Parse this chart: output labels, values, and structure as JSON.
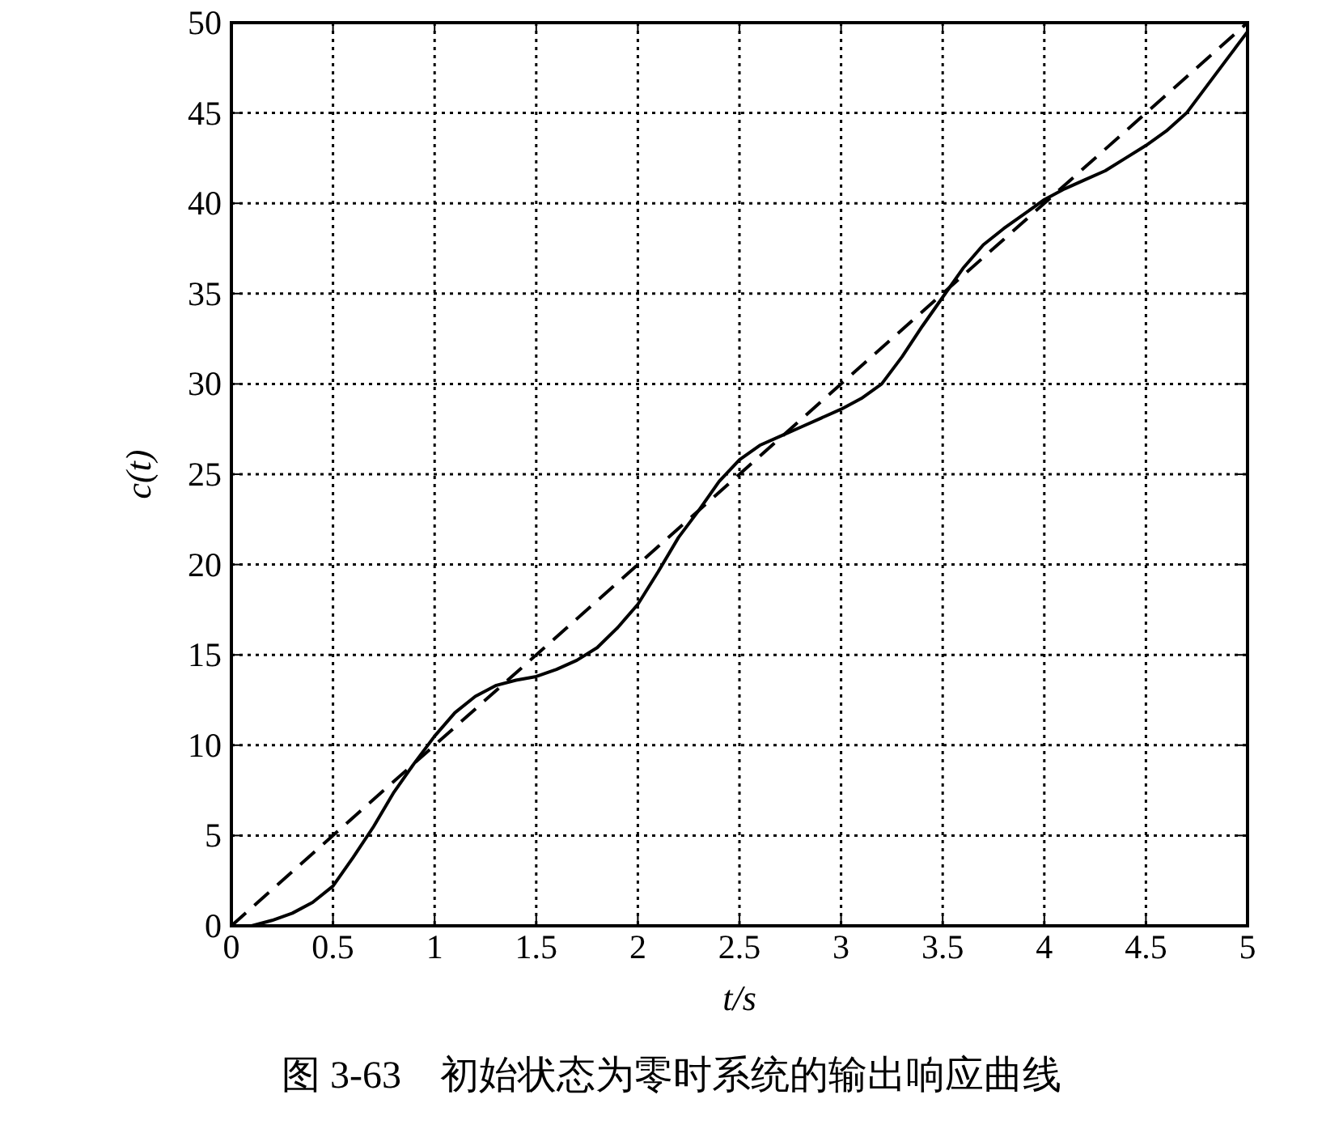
{
  "chart_data": {
    "type": "line",
    "xlabel": "t/s",
    "ylabel": "c(t)",
    "annotations": [
      "图 3-63　初始状态为零时系统的输出响应曲线"
    ],
    "xlim": [
      0,
      5
    ],
    "ylim": [
      0,
      50
    ],
    "xticks": [
      0,
      0.5,
      1,
      1.5,
      2,
      2.5,
      3,
      3.5,
      4,
      4.5,
      5
    ],
    "yticks": [
      0,
      5,
      10,
      15,
      20,
      25,
      30,
      35,
      40,
      45,
      50
    ],
    "grid": true,
    "marker": "none",
    "series": [
      {
        "color": "#000000",
        "line_style": "solid",
        "x": [
          0,
          0.1,
          0.2,
          0.3,
          0.4,
          0.5,
          0.6,
          0.7,
          0.8,
          0.9,
          1.0,
          1.1,
          1.2,
          1.3,
          1.4,
          1.5,
          1.6,
          1.7,
          1.8,
          1.9,
          2.0,
          2.1,
          2.2,
          2.3,
          2.4,
          2.5,
          2.6,
          2.7,
          2.8,
          2.9,
          3.0,
          3.1,
          3.2,
          3.3,
          3.4,
          3.5,
          3.6,
          3.7,
          3.8,
          3.9,
          4.0,
          4.1,
          4.2,
          4.3,
          4.4,
          4.5,
          4.6,
          4.7,
          4.8,
          4.9,
          5.0
        ],
        "values": [
          0,
          0,
          0.3,
          0.7,
          1.3,
          2.2,
          3.8,
          5.5,
          7.4,
          9.0,
          10.5,
          11.8,
          12.7,
          13.3,
          13.6,
          13.8,
          14.2,
          14.7,
          15.4,
          16.5,
          17.8,
          19.6,
          21.5,
          23,
          24.6,
          25.8,
          26.6,
          27.1,
          27.6,
          28.1,
          28.6,
          29.2,
          30,
          31.5,
          33.2,
          34.8,
          36.4,
          37.7,
          38.6,
          39.4,
          40.2,
          40.8,
          41.3,
          41.8,
          42.5,
          43.2,
          44,
          45,
          46.5,
          48,
          49.5
        ]
      },
      {
        "color": "#000000",
        "line_style": "dashed",
        "x": [
          0,
          5
        ],
        "values": [
          0,
          50
        ]
      }
    ]
  }
}
